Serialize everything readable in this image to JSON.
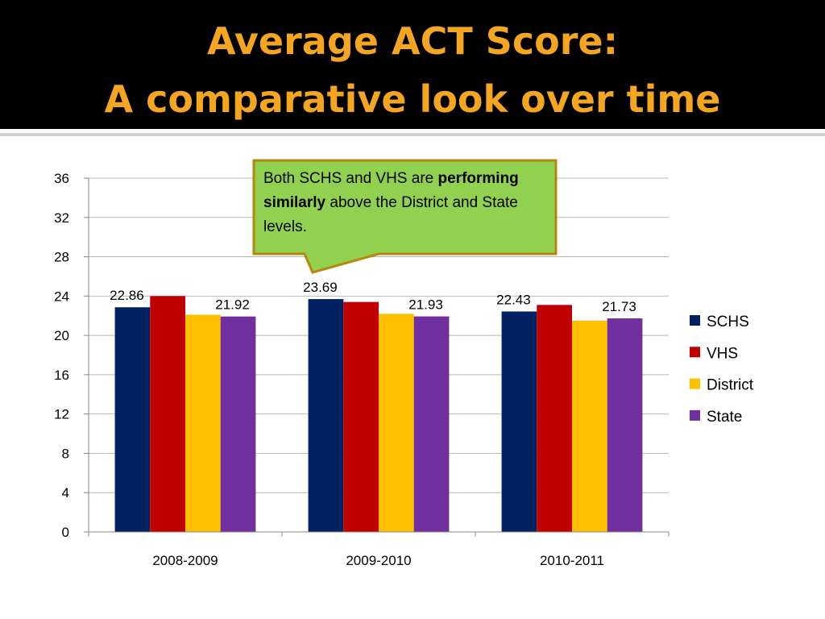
{
  "slide": {
    "title_line1": "Average ACT Score:",
    "title_line2": "A comparative look over time"
  },
  "callout": {
    "text_before": "Both SCHS and VHS are ",
    "text_bold": "performing similarly",
    "text_after": " above the District and State levels.",
    "fill": "#92d050",
    "border": "#b8860b"
  },
  "chart_data": {
    "type": "bar",
    "categories": [
      "2008-2009",
      "2009-2010",
      "2010-2011"
    ],
    "series": [
      {
        "name": "SCHS",
        "color": "#002060",
        "values": [
          22.86,
          23.69,
          22.43
        ]
      },
      {
        "name": "VHS",
        "color": "#c00000",
        "values": [
          24.0,
          23.4,
          23.1
        ]
      },
      {
        "name": "District",
        "color": "#ffc000",
        "values": [
          22.1,
          22.2,
          21.5
        ]
      },
      {
        "name": "State",
        "color": "#7030a0",
        "values": [
          21.92,
          21.93,
          21.73
        ]
      }
    ],
    "data_labels": [
      {
        "series": 0,
        "category": 0,
        "text": "22.86"
      },
      {
        "series": 3,
        "category": 0,
        "text": "21.92"
      },
      {
        "series": 0,
        "category": 1,
        "text": "23.69"
      },
      {
        "series": 3,
        "category": 1,
        "text": "21.93"
      },
      {
        "series": 0,
        "category": 2,
        "text": "22.43"
      },
      {
        "series": 3,
        "category": 2,
        "text": "21.73"
      }
    ],
    "y_ticks": [
      0,
      4,
      8,
      12,
      16,
      20,
      24,
      28,
      32,
      36
    ],
    "ylim": [
      0,
      36
    ],
    "grid": true,
    "legend_position": "right"
  }
}
